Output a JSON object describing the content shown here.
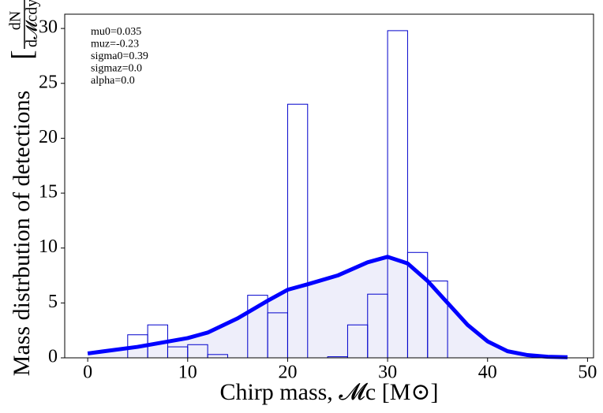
{
  "chart_data": {
    "type": "histogram",
    "xlabel": "Chirp mass, 𝓜c [M⊙]",
    "ylabel": "Mass distrbution of detections",
    "ylabel_numerator": "dN",
    "ylabel_denominator": "d𝓜cdyr",
    "annotations": [
      "mu0=0.035",
      "muz=-0.23",
      "sigma0=0.39",
      "sigmaz=0.0",
      "alpha=0.0"
    ],
    "bins": [
      4,
      6,
      8,
      10,
      12,
      14,
      16,
      18,
      20,
      22,
      24,
      26,
      28,
      30,
      32,
      34,
      36
    ],
    "values": [
      2.1,
      3.0,
      1.0,
      1.2,
      0.3,
      0,
      5.7,
      4.1,
      23.1,
      0,
      0.1,
      3.0,
      5.8,
      29.8,
      9.6,
      7.0
    ],
    "color": "#0000cc",
    "curve": {
      "type": "line",
      "color": "#0000ff",
      "fill": "#eeeefa",
      "x": [
        0,
        5,
        10,
        12,
        15,
        18,
        20,
        22,
        25,
        28,
        30,
        32,
        34,
        36,
        38,
        40,
        42,
        44,
        46,
        48
      ],
      "values": [
        0.4,
        1.0,
        1.8,
        2.3,
        3.6,
        5.2,
        6.2,
        6.7,
        7.5,
        8.7,
        9.2,
        8.6,
        7.0,
        5.0,
        3.0,
        1.5,
        0.6,
        0.25,
        0.1,
        0.05
      ]
    },
    "xlim": [
      -2.3,
      50.6
    ],
    "ylim": [
      0,
      31.3
    ],
    "xticks": [
      0,
      10,
      20,
      30,
      40,
      50
    ],
    "yticks": [
      0,
      5,
      10,
      15,
      20,
      25,
      30
    ]
  }
}
